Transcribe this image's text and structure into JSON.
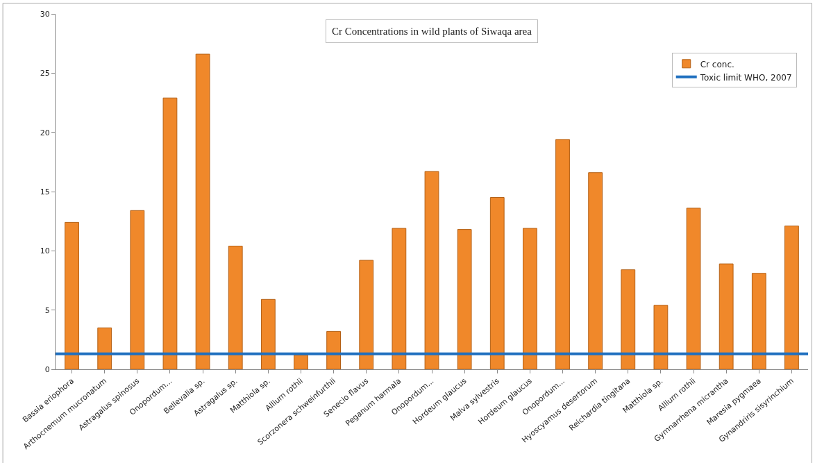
{
  "chart_data": {
    "type": "bar",
    "title": "Cr Concentrations in wild plants of Siwaqa area",
    "categories": [
      "Bassia eriophora",
      "Arthocnemum mucronatum",
      "Astragalus spinosus",
      "Onopordum...",
      "Bellevalia sp.",
      "Astragalus sp.",
      "Matthiola sp.",
      "Allium rothii",
      "Scorzonera schweinfurthii",
      "Senecio flavus",
      "Peganum harmala",
      "Onopordum...",
      "Hordeum glaucus",
      "Malva sylvestris",
      "Hordeum glaucus",
      "Onopordum...",
      "Hyoscyamus desertorum",
      "Reichardia tingitana",
      "Matthiola sp.",
      "Allium rothii",
      "Gymnarrhena micrantha",
      "Maresia pygmaea",
      "Gynandriris sisyrinchium"
    ],
    "series": [
      {
        "name": "Cr conc.",
        "color": "#f0882a",
        "values": [
          12.4,
          3.5,
          13.4,
          22.9,
          26.6,
          10.4,
          5.9,
          1.2,
          3.2,
          9.2,
          11.9,
          16.7,
          11.8,
          14.5,
          11.9,
          19.4,
          16.6,
          8.4,
          5.4,
          13.6,
          8.9,
          8.1,
          12.1
        ]
      }
    ],
    "ylim": [
      0,
      30
    ],
    "yticks": [
      0,
      5,
      10,
      15,
      20,
      25,
      30
    ],
    "grid": false,
    "legend": "top right",
    "ref_lines": [
      {
        "axis": "y",
        "value": 1.3,
        "label": "Toxic limit WHO, 2007",
        "color": "#1f6fbf"
      }
    ]
  }
}
